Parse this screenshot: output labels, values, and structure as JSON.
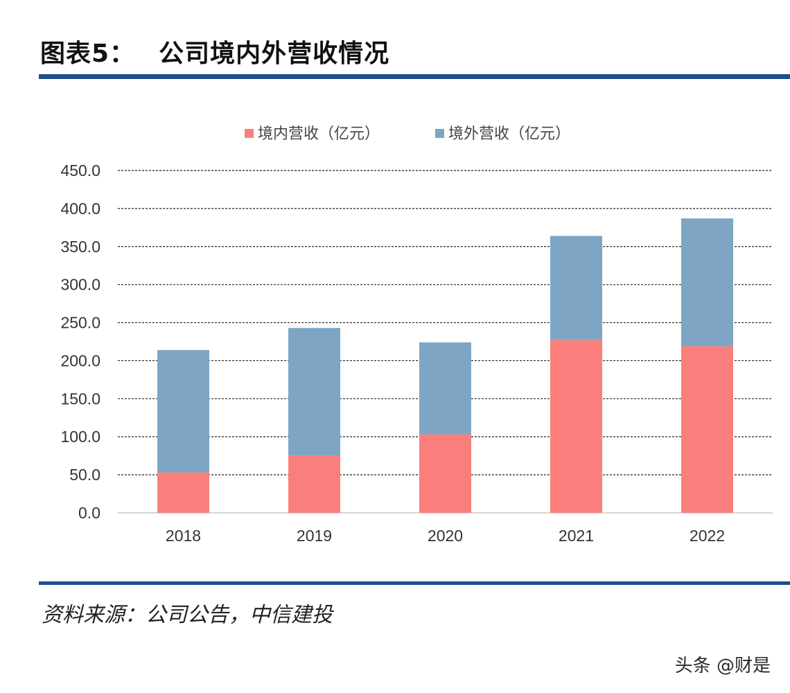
{
  "header": {
    "figure_label": "图表5：",
    "title": "公司境内外营收情况"
  },
  "source": "资料来源：公司公告，中信建投",
  "watermark": "头条 @财是",
  "colors": {
    "domestic": "#fa7f7c",
    "overseas": "#7ea6c4",
    "rule": "#1f4e8c"
  },
  "chart_data": {
    "type": "bar",
    "stacked": true,
    "title": "",
    "xlabel": "",
    "ylabel": "",
    "categories": [
      "2018",
      "2019",
      "2020",
      "2021",
      "2022"
    ],
    "series": [
      {
        "name": "境内营收（亿元）",
        "values": [
          53.0,
          75.0,
          103.0,
          227.0,
          219.0
        ]
      },
      {
        "name": "境外营收（亿元）",
        "values": [
          161.0,
          168.0,
          121.0,
          137.0,
          168.0
        ]
      }
    ],
    "ylim": [
      0,
      450
    ],
    "yticks": [
      "0.0",
      "50.0",
      "100.0",
      "150.0",
      "200.0",
      "250.0",
      "300.0",
      "350.0",
      "400.0",
      "450.0"
    ],
    "grid": true,
    "legend_position": "top"
  }
}
